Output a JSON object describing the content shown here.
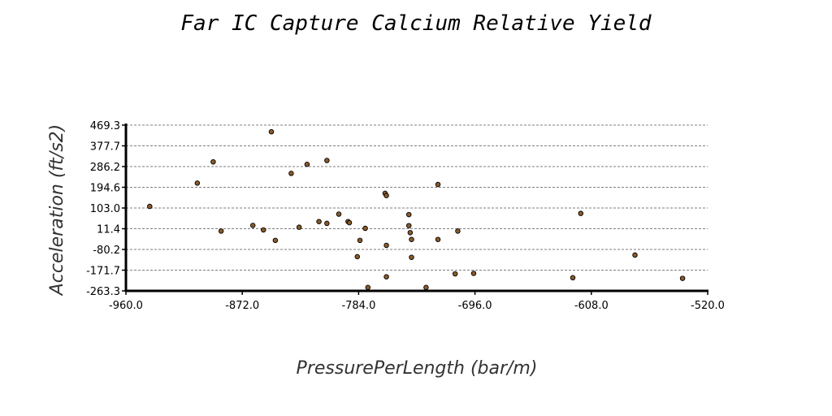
{
  "chart_data": {
    "type": "scatter",
    "title": "Far IC Capture Calcium Relative Yield",
    "xlabel": "PressurePerLength (bar/m)",
    "ylabel": "Acceleration (ft/s2)",
    "xlim": [
      -960.0,
      -520.0
    ],
    "ylim": [
      -263.3,
      469.3
    ],
    "x_ticks": [
      "-960.0",
      "-872.0",
      "-784.0",
      "-696.0",
      "-608.0",
      "-520.0"
    ],
    "y_ticks": [
      "469.3",
      "377.7",
      "286.2",
      "194.6",
      "103.0",
      "11.4",
      "-80.2",
      "-171.7",
      "-263.3"
    ],
    "grid": "horizontal dashed",
    "marker_color": "#8b5a2b",
    "points": [
      {
        "x": -942,
        "y": 110
      },
      {
        "x": -906,
        "y": 213
      },
      {
        "x": -894,
        "y": 307
      },
      {
        "x": -888,
        "y": 1
      },
      {
        "x": -864,
        "y": 26
      },
      {
        "x": -856,
        "y": 6
      },
      {
        "x": -850,
        "y": 440
      },
      {
        "x": -847,
        "y": -40
      },
      {
        "x": -835,
        "y": 256
      },
      {
        "x": -829,
        "y": 18
      },
      {
        "x": -823,
        "y": 296
      },
      {
        "x": -814,
        "y": 43
      },
      {
        "x": -808,
        "y": 35
      },
      {
        "x": -808,
        "y": 313
      },
      {
        "x": -799,
        "y": 76
      },
      {
        "x": -792,
        "y": 43
      },
      {
        "x": -791,
        "y": 38
      },
      {
        "x": -785,
        "y": -112
      },
      {
        "x": -783,
        "y": -40
      },
      {
        "x": -779,
        "y": 13
      },
      {
        "x": -777,
        "y": -248
      },
      {
        "x": -764,
        "y": 168
      },
      {
        "x": -763,
        "y": 158
      },
      {
        "x": -763,
        "y": -201
      },
      {
        "x": -763,
        "y": -62
      },
      {
        "x": -746,
        "y": 74
      },
      {
        "x": -746,
        "y": 25
      },
      {
        "x": -745,
        "y": -6
      },
      {
        "x": -744,
        "y": -36
      },
      {
        "x": -744,
        "y": -115
      },
      {
        "x": -733,
        "y": -248
      },
      {
        "x": -724,
        "y": 207
      },
      {
        "x": -724,
        "y": -36
      },
      {
        "x": -709,
        "y": 1
      },
      {
        "x": -711,
        "y": -188
      },
      {
        "x": -697,
        "y": -186
      },
      {
        "x": -616,
        "y": 79
      },
      {
        "x": -622,
        "y": -205
      },
      {
        "x": -575,
        "y": -105
      },
      {
        "x": -539,
        "y": -208
      }
    ]
  }
}
